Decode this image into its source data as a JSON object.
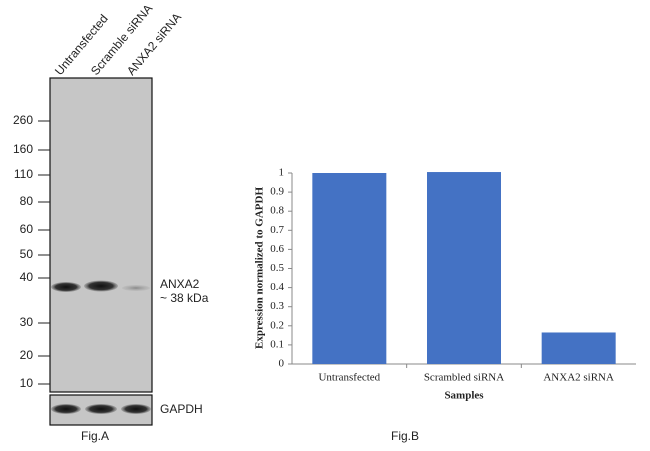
{
  "blot": {
    "lanes": [
      "Untransfected",
      "Scramble siRNA",
      "ANXA2 siRNA"
    ],
    "markers": [
      260,
      160,
      110,
      80,
      60,
      50,
      40,
      30,
      20,
      10
    ],
    "band_label": "ANXA2",
    "band_size": "~ 38 kDa",
    "loading_control": "GAPDH",
    "caption": "Fig.A"
  },
  "chart_data": {
    "type": "bar",
    "caption": "Fig.B",
    "categories": [
      "Untransfected",
      "Scrambled siRNA",
      "ANXA2 siRNA"
    ],
    "values": [
      1.0,
      1.005,
      0.165
    ],
    "color": "#4472c4",
    "ylim": [
      0,
      1
    ],
    "yticks": [
      0,
      0.1,
      0.2,
      0.3,
      0.4,
      0.5,
      0.6,
      0.7,
      0.8,
      0.9,
      1
    ],
    "y_label": "Expression normalized to GAPDH",
    "x_label": "Samples",
    "grid": false
  }
}
